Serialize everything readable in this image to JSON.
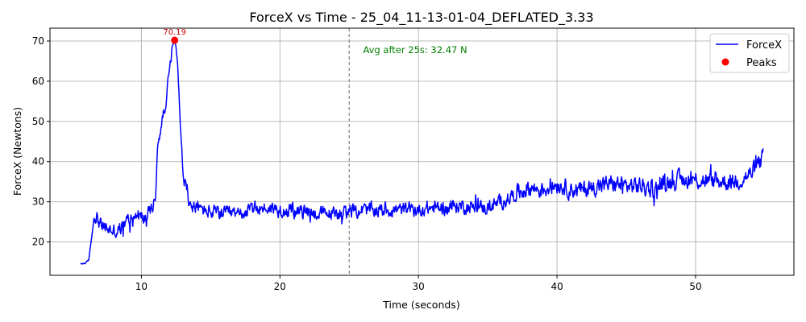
{
  "chart_data": {
    "type": "line",
    "title": "ForceX vs Time - 25_04_11-13-01-04_DEFLATED_3.33",
    "xlabel": "Time (seconds)",
    "ylabel": "ForceX (Newtons)",
    "xlim": [
      3.4,
      57.1
    ],
    "ylim": [
      11.7,
      73.2
    ],
    "xticks": [
      10,
      20,
      30,
      40,
      50
    ],
    "yticks": [
      20,
      30,
      40,
      50,
      60,
      70
    ],
    "grid": true,
    "legend_position": "top-right",
    "colors": {
      "line": "#0000ff",
      "peak": "#ff0000",
      "annotation": "#008000",
      "vline": "#808080",
      "peak_label": "#cc0000"
    },
    "series": [
      {
        "name": "ForceX",
        "x": [
          5.6,
          6.0,
          6.2,
          6.4,
          6.6,
          6.8,
          7.0,
          7.4,
          7.8,
          8.2,
          8.6,
          9.0,
          9.4,
          9.8,
          10.2,
          10.6,
          11.0,
          11.2,
          11.4,
          11.6,
          11.8,
          12.0,
          12.2,
          12.4,
          12.5,
          12.6,
          12.8,
          13.0,
          13.5,
          14.0,
          15.0,
          16.0,
          17.0,
          18.0,
          19.0,
          20.0,
          21.0,
          22.0,
          23.0,
          24.0,
          25.0,
          26.0,
          27.0,
          28.0,
          29.0,
          30.0,
          31.0,
          32.0,
          33.0,
          34.0,
          35.0,
          36.0,
          37.0,
          38.0,
          39.0,
          40.0,
          41.0,
          42.0,
          43.0,
          44.0,
          45.0,
          46.0,
          47.0,
          48.0,
          49.0,
          50.0,
          51.0,
          52.0,
          53.0,
          54.0,
          54.9
        ],
        "values": [
          14.5,
          14.8,
          15.5,
          21.0,
          26.5,
          26.0,
          24.5,
          23.5,
          23.0,
          22.5,
          23.5,
          25.5,
          26.5,
          26.5,
          26.0,
          27.5,
          30.0,
          45.0,
          48.0,
          52.0,
          56.0,
          62.0,
          68.0,
          70.19,
          68.5,
          66.0,
          50.0,
          37.0,
          29.0,
          28.5,
          27.5,
          27.0,
          27.0,
          28.0,
          28.5,
          28.0,
          27.5,
          27.5,
          27.0,
          27.0,
          27.5,
          28.0,
          28.0,
          28.0,
          28.0,
          28.0,
          28.5,
          28.5,
          29.0,
          28.5,
          28.5,
          30.0,
          32.0,
          33.5,
          33.0,
          34.5,
          33.0,
          33.0,
          34.0,
          34.5,
          34.0,
          34.0,
          33.0,
          35.0,
          35.5,
          35.5,
          35.0,
          35.0,
          35.0,
          37.0,
          41.0
        ],
        "noise_amplitude": 2.6
      }
    ],
    "peaks": [
      {
        "x": 12.4,
        "y": 70.19,
        "label": "70.19"
      }
    ],
    "vline": {
      "x": 25
    },
    "annotation": {
      "text": "Avg after 25s: 32.47 N",
      "x": 26.0,
      "y": 67
    },
    "legend": [
      {
        "label": "ForceX",
        "marker": "line"
      },
      {
        "label": "Peaks",
        "marker": "dot"
      }
    ]
  }
}
